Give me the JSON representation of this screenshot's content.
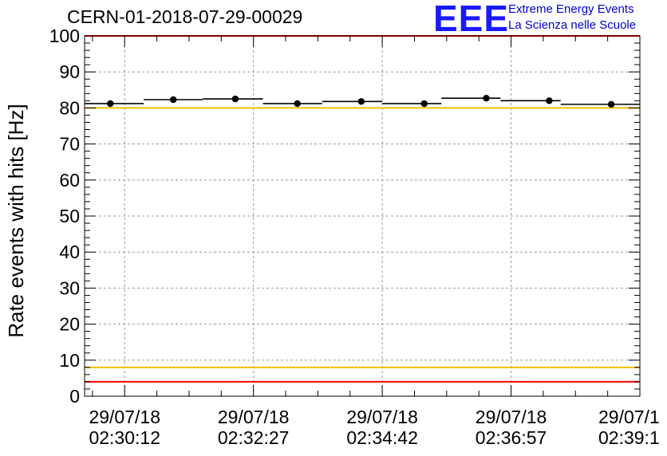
{
  "header": {
    "title": "CERN-01-2018-07-29-00029",
    "logo_text": "EEE",
    "logo_line1": "Extreme Energy Events",
    "logo_line2": "La Scienza nelle Scuole"
  },
  "colors": {
    "data": "#000000",
    "red_limit": "#ff0000",
    "yellow_limit": "#f0c000",
    "grid": "#9a9a9a",
    "logo": "#1a1aff"
  },
  "chart_data": {
    "type": "scatter",
    "title": "CERN-01-2018-07-29-00029",
    "ylabel": "Rate events with hits [Hz]",
    "xlabel": "",
    "xlim": [
      "29/07/18 02:29:30",
      "29/07/18 02:39:12"
    ],
    "ylim": [
      0,
      100
    ],
    "grid": true,
    "x_tick_labels": [
      {
        "date": "29/07/18",
        "time": "02:30:12"
      },
      {
        "date": "29/07/18",
        "time": "02:32:27"
      },
      {
        "date": "29/07/18",
        "time": "02:34:42"
      },
      {
        "date": "29/07/18",
        "time": "02:36:57"
      },
      {
        "date": "29/07/1",
        "time": "02:39:1"
      }
    ],
    "y_tick_labels": [
      "0",
      "10",
      "20",
      "30",
      "40",
      "50",
      "60",
      "70",
      "80",
      "90",
      "100"
    ],
    "y_ticks": [
      0,
      10,
      20,
      30,
      40,
      50,
      60,
      70,
      80,
      90,
      100
    ],
    "series": [
      {
        "x_start": [
          "02:29:30",
          "02:30:32",
          "02:31:34",
          "02:32:37",
          "02:33:39",
          "02:34:42",
          "02:35:44",
          "02:36:46",
          "02:37:49",
          "02:38:51"
        ],
        "x_center": [
          "02:30:01",
          "02:31:03",
          "02:32:06",
          "02:33:08",
          "02:34:11",
          "02:35:13",
          "02:36:15",
          "02:37:18",
          "02:38:20",
          "02:39:00"
        ],
        "x_end": [
          "02:30:32",
          "02:31:34",
          "02:32:37",
          "02:33:39",
          "02:34:42",
          "02:35:44",
          "02:36:46",
          "02:37:49",
          "02:38:51",
          "02:39:12"
        ],
        "y": [
          81.2,
          82.3,
          82.5,
          81.2,
          81.8,
          81.2,
          82.7,
          82.0,
          81.0,
          81.0
        ],
        "yerr": [
          0.7,
          0.7,
          0.7,
          0.7,
          0.7,
          0.7,
          0.7,
          0.7,
          0.7,
          0.7
        ],
        "point_times": [
          "02:29:57",
          "02:31:03",
          "02:32:08",
          "02:33:13",
          "02:34:20",
          "02:35:26",
          "02:36:31",
          "02:37:37",
          "02:38:42"
        ],
        "point_y": [
          81.2,
          82.3,
          82.5,
          81.2,
          81.8,
          81.2,
          82.7,
          82.0,
          81.0
        ]
      }
    ],
    "reference_lines": [
      {
        "y": 100,
        "color": "#ff0000"
      },
      {
        "y": 80,
        "color": "#f0c000"
      },
      {
        "y": 8,
        "color": "#f0c000"
      },
      {
        "y": 4,
        "color": "#ff0000"
      }
    ]
  }
}
